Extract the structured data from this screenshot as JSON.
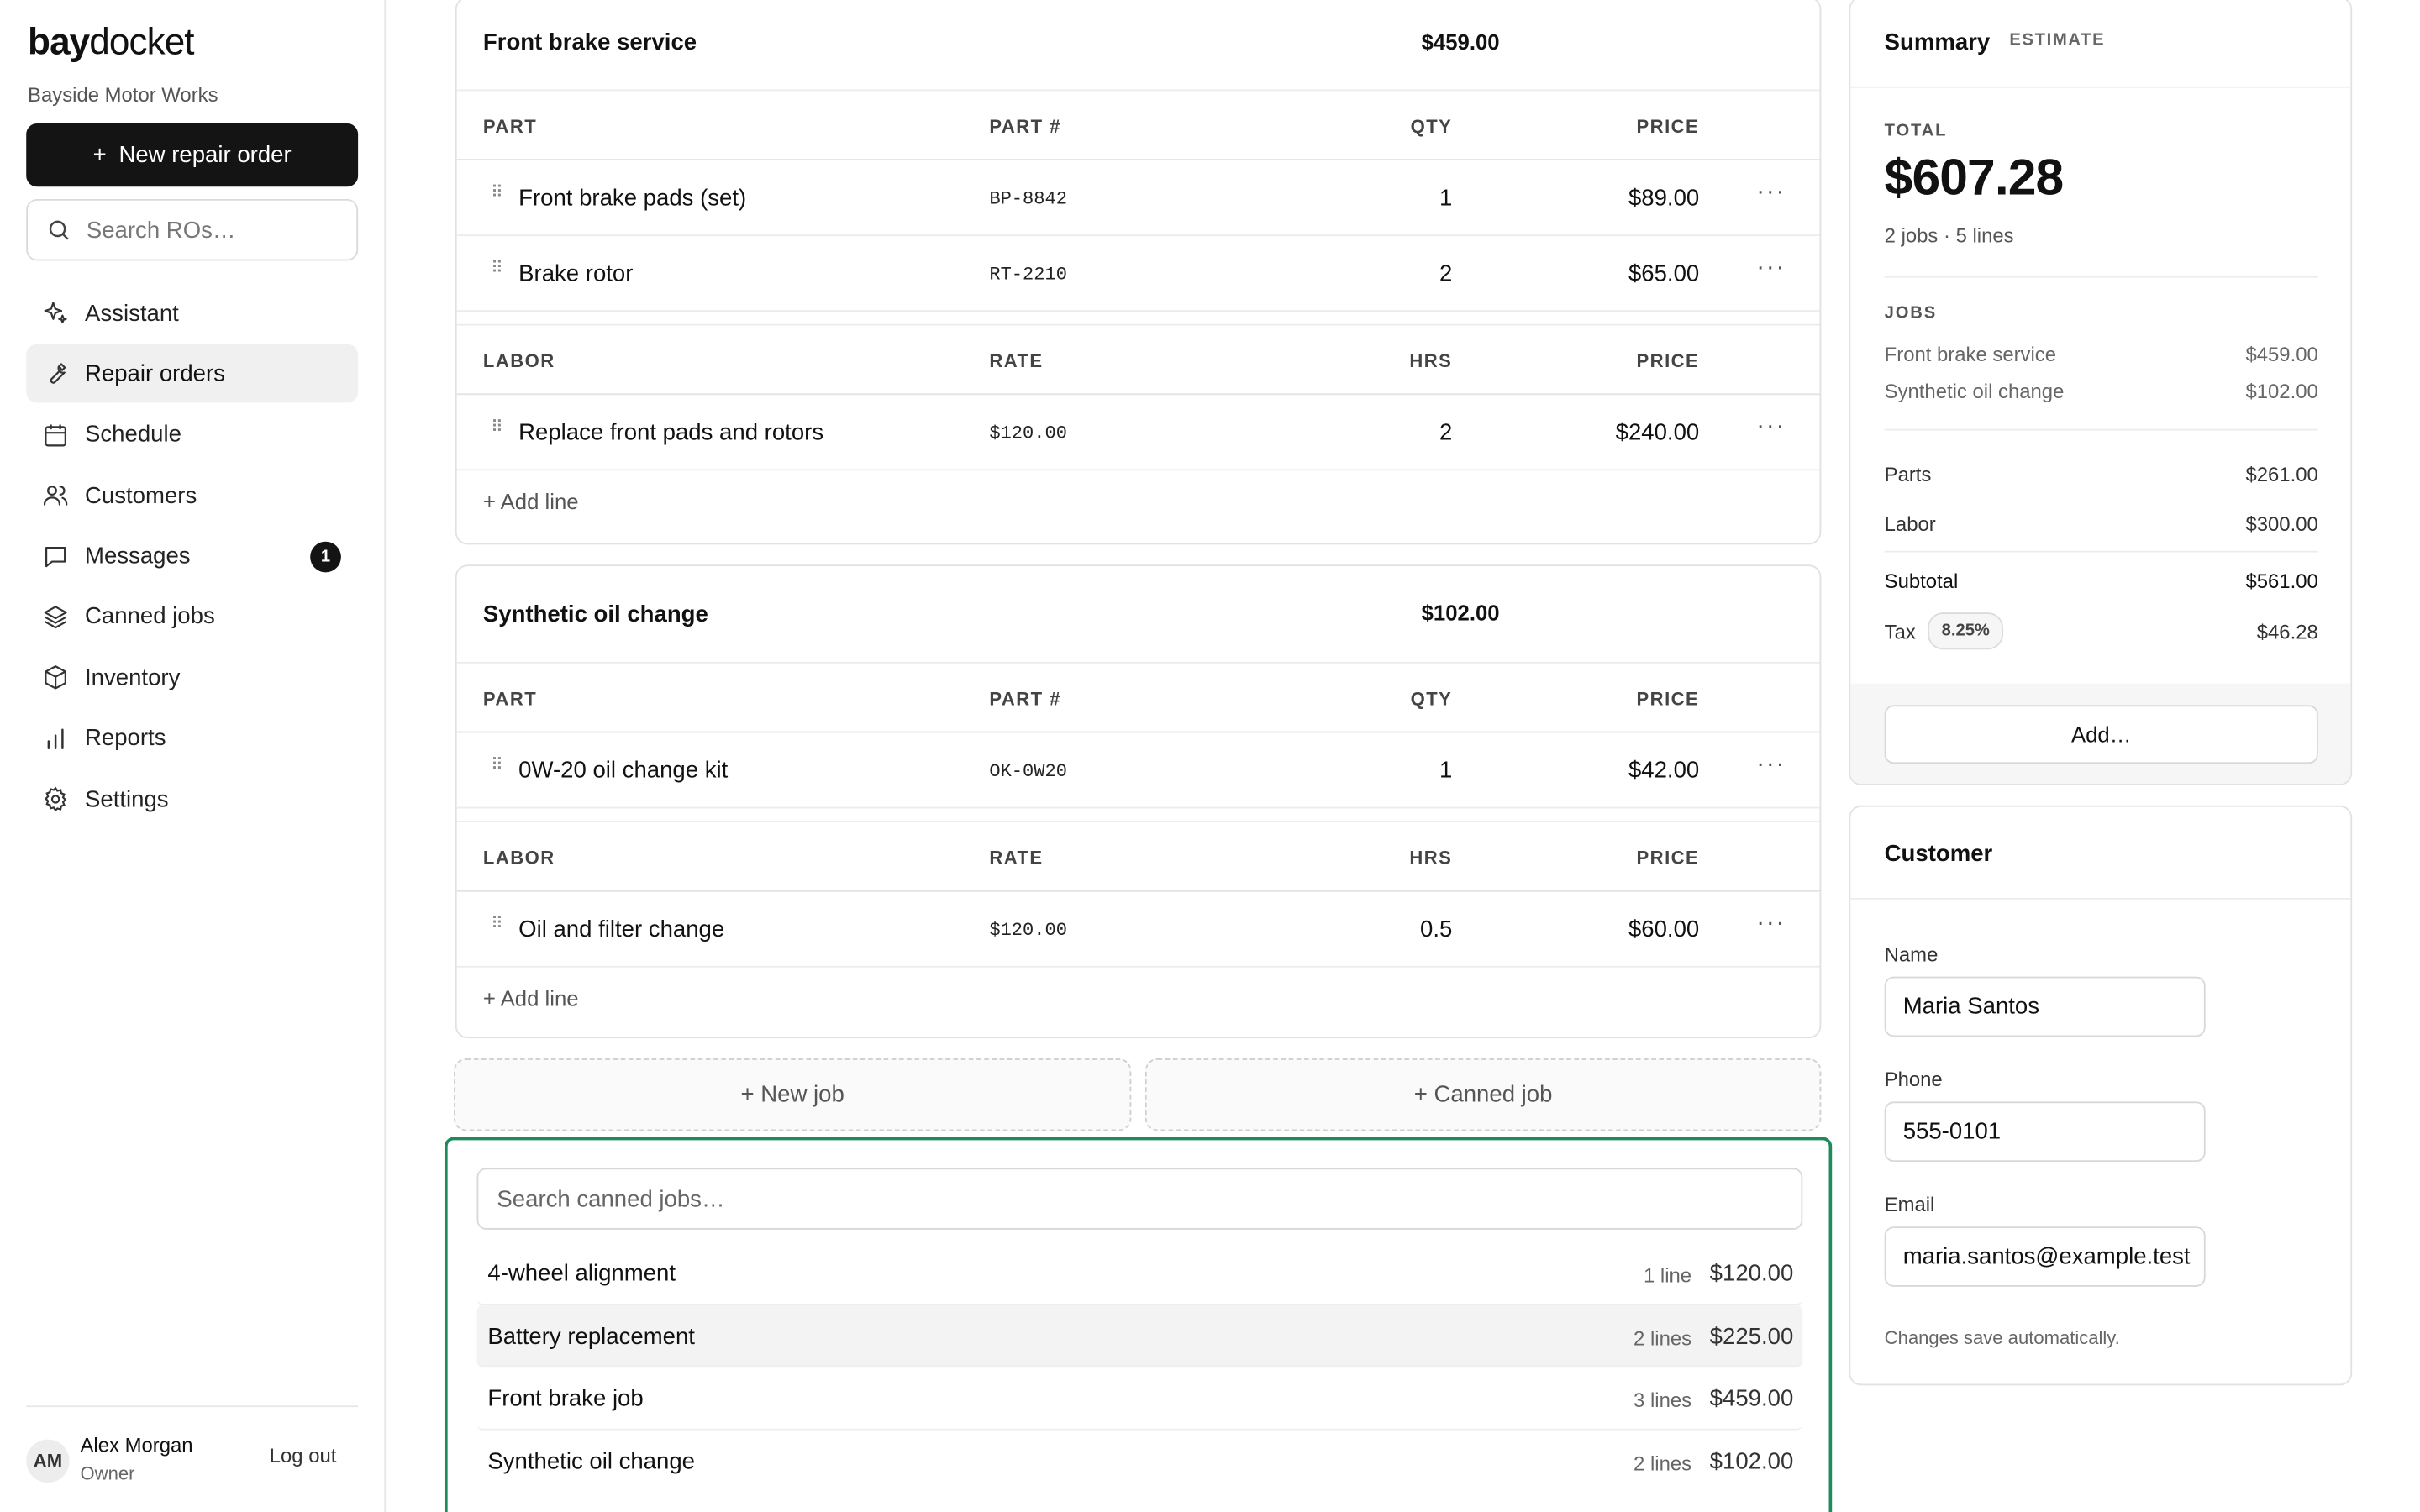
{
  "app": {
    "logo_bold": "bay",
    "logo_rest": "docket",
    "shop_name": "Bayside Motor Works",
    "new_ro_label": "New repair order",
    "search_placeholder": "Search ROs…"
  },
  "nav": [
    {
      "label": "Assistant",
      "icon": "sparkle-icon",
      "active": false
    },
    {
      "label": "Repair orders",
      "icon": "wrench-icon",
      "active": true
    },
    {
      "label": "Schedule",
      "icon": "calendar-icon",
      "active": false
    },
    {
      "label": "Customers",
      "icon": "users-icon",
      "active": false
    },
    {
      "label": "Messages",
      "icon": "message-icon",
      "active": false,
      "badge": "1"
    },
    {
      "label": "Canned jobs",
      "icon": "layers-icon",
      "active": false
    },
    {
      "label": "Inventory",
      "icon": "box-icon",
      "active": false
    },
    {
      "label": "Reports",
      "icon": "bar-chart-icon",
      "active": false
    },
    {
      "label": "Settings",
      "icon": "gear-icon",
      "active": false
    }
  ],
  "user": {
    "initials": "AM",
    "name": "Alex Morgan",
    "role": "Owner",
    "logout_label": "Log out"
  },
  "headers": {
    "part": "PART",
    "part_no": "PART #",
    "qty": "QTY",
    "price": "PRICE",
    "labor": "LABOR",
    "rate": "RATE",
    "hrs": "HRS",
    "add_line": "+ Add line"
  },
  "jobs": [
    {
      "title": "Front brake service",
      "total": "$459.00",
      "parts": [
        {
          "name": "Front brake pads (set)",
          "part_no": "BP-8842",
          "qty": "1",
          "price": "$89.00"
        },
        {
          "name": "Brake rotor",
          "part_no": "RT-2210",
          "qty": "2",
          "price": "$65.00"
        }
      ],
      "labor": [
        {
          "name": "Replace front pads and rotors",
          "rate": "$120.00",
          "hrs": "2",
          "price": "$240.00"
        }
      ]
    },
    {
      "title": "Synthetic oil change",
      "total": "$102.00",
      "parts": [
        {
          "name": "0W-20 oil change kit",
          "part_no": "OK-0W20",
          "qty": "1",
          "price": "$42.00"
        }
      ],
      "labor": [
        {
          "name": "Oil and filter change",
          "rate": "$120.00",
          "hrs": "0.5",
          "price": "$60.00"
        }
      ]
    }
  ],
  "job_actions": {
    "new_job": "+ New job",
    "canned_job": "+ Canned job"
  },
  "canned": {
    "search_placeholder": "Search canned jobs…",
    "items": [
      {
        "name": "4-wheel alignment",
        "lines": "1 line",
        "price": "$120.00"
      },
      {
        "name": "Battery replacement",
        "lines": "2 lines",
        "price": "$225.00",
        "hover": true
      },
      {
        "name": "Front brake job",
        "lines": "3 lines",
        "price": "$459.00"
      },
      {
        "name": "Synthetic oil change",
        "lines": "2 lines",
        "price": "$102.00"
      }
    ]
  },
  "summary": {
    "title": "Summary",
    "tag": "ESTIMATE",
    "total_label": "TOTAL",
    "total": "$607.28",
    "meta": "2 jobs · 5 lines",
    "jobs_label": "JOBS",
    "jobs": [
      {
        "name": "Front brake service",
        "amount": "$459.00"
      },
      {
        "name": "Synthetic oil change",
        "amount": "$102.00"
      }
    ],
    "parts_label": "Parts",
    "parts": "$261.00",
    "labor_label": "Labor",
    "labor": "$300.00",
    "subtotal_label": "Subtotal",
    "subtotal": "$561.00",
    "tax_label": "Tax",
    "tax_rate": "8.25%",
    "tax": "$46.28",
    "add_label": "Add…"
  },
  "customer": {
    "title": "Customer",
    "name_label": "Name",
    "name": "Maria Santos",
    "phone_label": "Phone",
    "phone": "555-0101",
    "email_label": "Email",
    "email": "maria.santos@example.test",
    "hint": "Changes save automatically."
  },
  "colors": {
    "accent": "#1f8a5a",
    "primary": "#141414"
  }
}
